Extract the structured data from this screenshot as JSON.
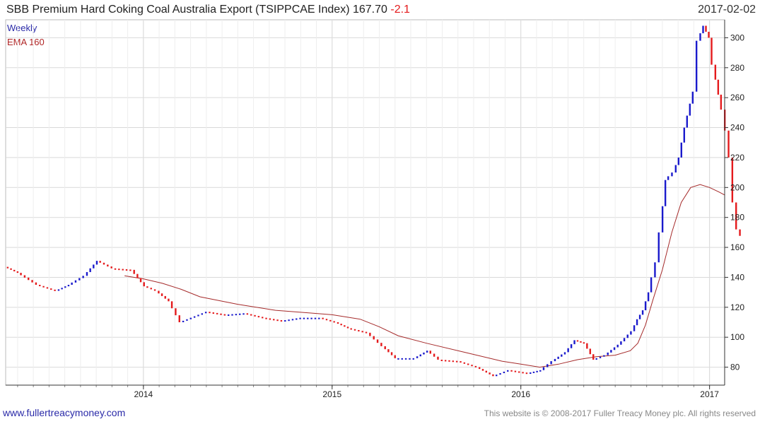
{
  "header": {
    "title": "SBB Premium Hard Coking Coal Australia Export  (TSIPPCAE Index) 167.70",
    "change": "-2.1",
    "date": "2017-02-02"
  },
  "footer": {
    "left": "www.fullertreacymoney.com",
    "right": "This website is © 2008-2017 Fuller Treacy Money plc. All rights reserved"
  },
  "colors": {
    "up": "#1a1acc",
    "down": "#e41a1c",
    "ema": "#a52a2a",
    "grid": "#d9d9d9",
    "axis": "#333333"
  },
  "chart_data": {
    "type": "line",
    "legend": [
      "Weekly",
      "EMA 160"
    ],
    "legend_position": "top-left",
    "grid": true,
    "ylim": [
      68,
      312
    ],
    "xlim": [
      2013.27,
      2017.08
    ],
    "y_ticks": [
      80,
      100,
      120,
      140,
      160,
      180,
      200,
      220,
      240,
      260,
      280,
      300
    ],
    "x_ticks": [
      {
        "label": "2014",
        "x": 2014.0
      },
      {
        "label": "2015",
        "x": 2015.0
      },
      {
        "label": "2016",
        "x": 2016.0
      },
      {
        "label": "2017",
        "x": 2017.0
      }
    ],
    "series": [
      {
        "name": "Weekly",
        "points": [
          [
            2013.28,
            147
          ],
          [
            2013.35,
            143
          ],
          [
            2013.45,
            135
          ],
          [
            2013.55,
            131
          ],
          [
            2013.62,
            135
          ],
          [
            2013.7,
            141
          ],
          [
            2013.77,
            151
          ],
          [
            2013.85,
            146
          ],
          [
            2013.95,
            145
          ],
          [
            2014.02,
            134
          ],
          [
            2014.08,
            131
          ],
          [
            2014.15,
            124
          ],
          [
            2014.21,
            110
          ],
          [
            2014.27,
            113
          ],
          [
            2014.35,
            117
          ],
          [
            2014.45,
            115
          ],
          [
            2014.55,
            116
          ],
          [
            2014.65,
            113
          ],
          [
            2014.75,
            111
          ],
          [
            2014.85,
            113
          ],
          [
            2014.95,
            113
          ],
          [
            2015.03,
            110
          ],
          [
            2015.1,
            106
          ],
          [
            2015.2,
            103
          ],
          [
            2015.28,
            94
          ],
          [
            2015.35,
            86
          ],
          [
            2015.45,
            86
          ],
          [
            2015.52,
            91
          ],
          [
            2015.58,
            85
          ],
          [
            2015.68,
            84
          ],
          [
            2015.78,
            80
          ],
          [
            2015.87,
            74
          ],
          [
            2015.95,
            78
          ],
          [
            2016.05,
            76
          ],
          [
            2016.12,
            78
          ],
          [
            2016.18,
            84
          ],
          [
            2016.25,
            90
          ],
          [
            2016.3,
            98
          ],
          [
            2016.35,
            96
          ],
          [
            2016.4,
            85
          ],
          [
            2016.46,
            88
          ],
          [
            2016.53,
            95
          ],
          [
            2016.6,
            104
          ],
          [
            2016.63,
            112
          ],
          [
            2016.66,
            118
          ],
          [
            2016.69,
            130
          ],
          [
            2016.71,
            140
          ],
          [
            2016.73,
            150
          ],
          [
            2016.75,
            170
          ],
          [
            2016.78,
            205
          ],
          [
            2016.82,
            210
          ],
          [
            2016.85,
            220
          ],
          [
            2016.88,
            240
          ],
          [
            2016.91,
            256
          ],
          [
            2016.93,
            264
          ],
          [
            2016.95,
            298
          ],
          [
            2016.98,
            308
          ],
          [
            2017.01,
            300
          ],
          [
            2017.03,
            282
          ],
          [
            2017.06,
            262
          ],
          [
            2017.08,
            252
          ],
          [
            2017.1,
            238
          ],
          [
            2017.12,
            220
          ],
          [
            2017.14,
            190
          ],
          [
            2017.16,
            172
          ],
          [
            2017.18,
            167.7
          ]
        ]
      },
      {
        "name": "EMA 160",
        "points": [
          [
            2013.9,
            141
          ],
          [
            2014.0,
            139
          ],
          [
            2014.1,
            136
          ],
          [
            2014.2,
            132
          ],
          [
            2014.3,
            127
          ],
          [
            2014.5,
            122
          ],
          [
            2014.7,
            118
          ],
          [
            2014.9,
            116
          ],
          [
            2015.0,
            115
          ],
          [
            2015.15,
            112
          ],
          [
            2015.25,
            107
          ],
          [
            2015.35,
            101
          ],
          [
            2015.5,
            96
          ],
          [
            2015.7,
            90
          ],
          [
            2015.9,
            84
          ],
          [
            2016.0,
            82
          ],
          [
            2016.1,
            80
          ],
          [
            2016.2,
            82
          ],
          [
            2016.3,
            85
          ],
          [
            2016.4,
            87
          ],
          [
            2016.5,
            88
          ],
          [
            2016.58,
            91
          ],
          [
            2016.62,
            96
          ],
          [
            2016.66,
            108
          ],
          [
            2016.7,
            125
          ],
          [
            2016.75,
            145
          ],
          [
            2016.8,
            170
          ],
          [
            2016.85,
            190
          ],
          [
            2016.9,
            200
          ],
          [
            2016.95,
            202
          ],
          [
            2017.0,
            200
          ],
          [
            2017.05,
            197
          ],
          [
            2017.08,
            195
          ]
        ]
      }
    ]
  }
}
